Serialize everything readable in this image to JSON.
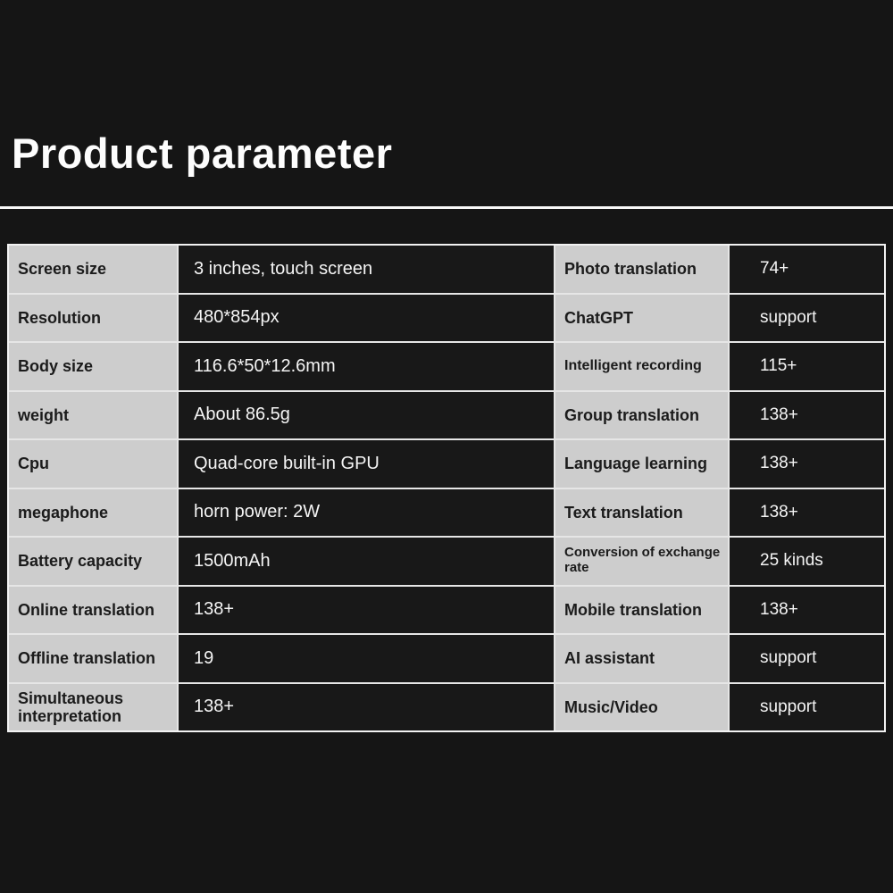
{
  "header": {
    "title": "Product parameter"
  },
  "colors": {
    "page_background": "#151515",
    "label_cell_background": "#cdcdcd",
    "value_cell_background": "#181818",
    "cell_border": "#f2f2f2",
    "title_text": "#fdfdfd",
    "label_text": "#1b1b1b",
    "value_text": "#f5f5f5"
  },
  "table": {
    "left_rows": [
      {
        "label": "Screen size",
        "value": "3 inches, touch screen"
      },
      {
        "label": "Resolution",
        "value": "480*854px"
      },
      {
        "label": "Body size",
        "value": "116.6*50*12.6mm"
      },
      {
        "label": "weight",
        "value": "About 86.5g"
      },
      {
        "label": "Cpu",
        "value": "Quad-core built-in GPU"
      },
      {
        "label": "megaphone",
        "value": "horn power: 2W"
      },
      {
        "label": "Battery capacity",
        "value": "1500mAh"
      },
      {
        "label": "Online translation",
        "value": "138+"
      },
      {
        "label": "Offline translation",
        "value": "19"
      },
      {
        "label": "Simultaneous interpretation",
        "value": "138+"
      }
    ],
    "right_rows": [
      {
        "label": "Photo translation",
        "value": "74+"
      },
      {
        "label": "ChatGPT",
        "value": "support"
      },
      {
        "label": "Intelligent recording",
        "value": "115+"
      },
      {
        "label": "Group translation",
        "value": "138+"
      },
      {
        "label": "Language learning",
        "value": "138+"
      },
      {
        "label": "Text translation",
        "value": "138+"
      },
      {
        "label": "Conversion of exchange rate",
        "value": "25 kinds"
      },
      {
        "label": "Mobile translation",
        "value": "138+"
      },
      {
        "label": "AI assistant",
        "value": "support"
      },
      {
        "label": "Music/Video",
        "value": "support"
      }
    ]
  }
}
